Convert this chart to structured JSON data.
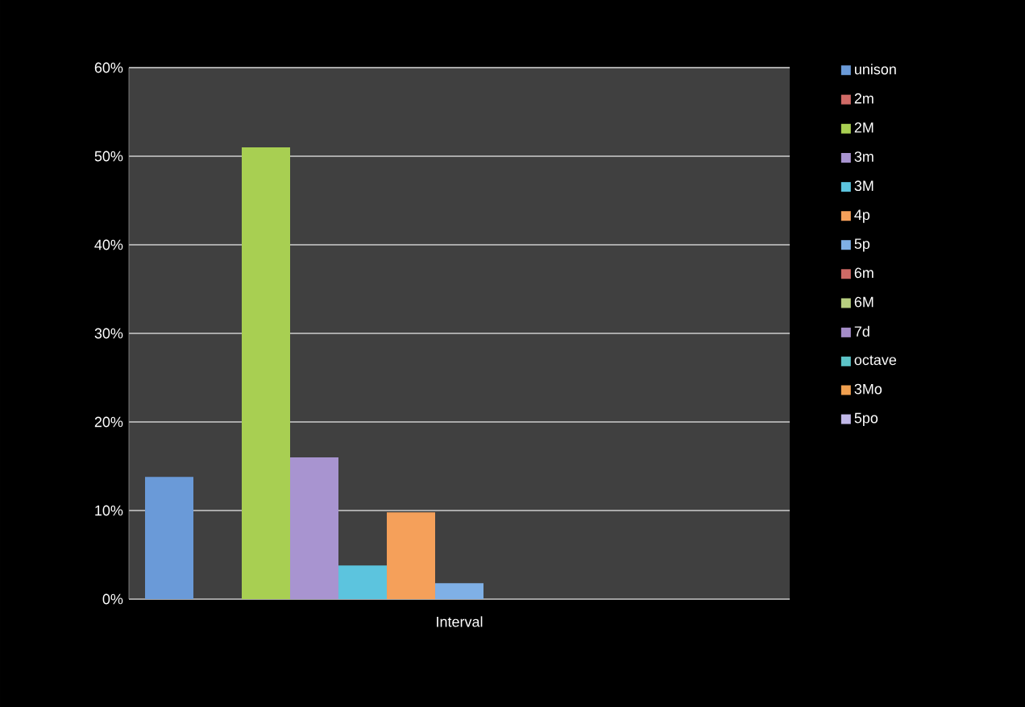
{
  "chart_data": {
    "type": "bar",
    "xlabel": "Interval",
    "categories": [
      null
    ],
    "ylim": [
      0,
      60
    ],
    "yticks": [
      {
        "value": 0,
        "label": "0%"
      },
      {
        "value": 10,
        "label": "10%"
      },
      {
        "value": 20,
        "label": "20%"
      },
      {
        "value": 30,
        "label": "30%"
      },
      {
        "value": 40,
        "label": "40%"
      },
      {
        "value": 50,
        "label": "50%"
      },
      {
        "value": 60,
        "label": "60%"
      }
    ],
    "grid": "y",
    "legend": "right",
    "series": [
      {
        "name": "unison",
        "color": "#6a9ad8",
        "values": [
          13.8
        ]
      },
      {
        "name": "2m",
        "color": "#d06a66",
        "values": [
          0
        ]
      },
      {
        "name": "2M",
        "color": "#a8cf52",
        "values": [
          51
        ]
      },
      {
        "name": "3m",
        "color": "#a894d0",
        "values": [
          16
        ]
      },
      {
        "name": "3M",
        "color": "#5cc4de",
        "values": [
          3.8
        ]
      },
      {
        "name": "4p",
        "color": "#f5a05a",
        "values": [
          9.8
        ]
      },
      {
        "name": "5p",
        "color": "#7fb0e6",
        "values": [
          1.8
        ]
      },
      {
        "name": "6m",
        "color": "#d06a66",
        "values": [
          0
        ]
      },
      {
        "name": "6M",
        "color": "#b8d080",
        "values": [
          0
        ]
      },
      {
        "name": "7d",
        "color": "#a48cc8",
        "values": [
          0
        ]
      },
      {
        "name": "octave",
        "color": "#5cc4c8",
        "values": [
          0
        ]
      },
      {
        "name": "3Mo",
        "color": "#f0a050",
        "values": [
          0
        ]
      },
      {
        "name": "5po",
        "color": "#c0b8e8",
        "values": [
          0
        ]
      }
    ]
  }
}
